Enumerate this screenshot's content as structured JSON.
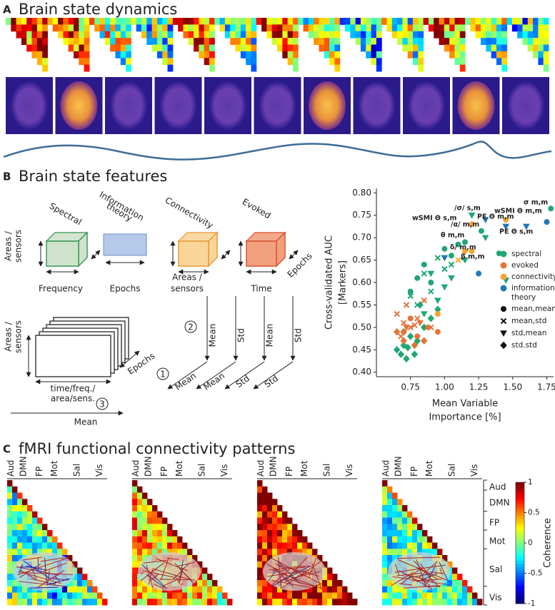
{
  "panel_a": {
    "label": "A",
    "title": "Brain state dynamics"
  },
  "panel_b": {
    "label": "B",
    "title": "Brain state features",
    "cubes": [
      {
        "name": "Spectral",
        "axes": [
          [
            "Areas /",
            "sensors"
          ],
          "Frequency"
        ]
      },
      {
        "name": [
          "Information",
          "theory"
        ],
        "axes": [
          "Epochs"
        ]
      },
      {
        "name": "Connectivity",
        "axes": [
          [
            "Areas /",
            "sensors"
          ]
        ]
      },
      {
        "name": "Evoked",
        "axes": [
          "Time",
          "Epochs"
        ]
      }
    ],
    "stack": {
      "y_axis": [
        "Areas /",
        "sensors"
      ],
      "x_axis": [
        "time/freq./",
        "area/sens."
      ],
      "depth": "Epochs",
      "step": "3",
      "step_label": "Mean"
    },
    "aggregation": {
      "steps": [
        "1",
        "2"
      ],
      "first": [
        "Mean",
        "Std",
        "Mean",
        "Std"
      ],
      "second": [
        "Mean",
        "Mean",
        "Std",
        "Std"
      ]
    }
  },
  "chart_data": {
    "type": "scatter",
    "x_label": [
      "Mean Variable",
      "Importance [%]"
    ],
    "y_label": [
      "Cross-validated AUC",
      "[Markers]"
    ],
    "xlim": [
      0.5,
      1.8
    ],
    "ylim": [
      0.39,
      0.81
    ],
    "xticks": [
      0.75,
      {
        "value": 1,
        "label": "1.00"
      },
      1.25,
      {
        "value": 1.5,
        "label": "1.50"
      },
      1.75
    ],
    "yticks": [
      {
        "value": 0.4,
        "label": "0.40"
      },
      0.45,
      {
        "value": 0.5,
        "label": "0.50"
      },
      0.55,
      {
        "value": 0.6,
        "label": "0.60"
      },
      0.65,
      {
        "value": 0.7,
        "label": "0.70"
      },
      0.75,
      {
        "value": 0.8,
        "label": "0.80"
      }
    ],
    "series": [
      {
        "name": "spectral",
        "color": "#1fa774",
        "x": [
          1.78,
          1.27,
          1.15,
          1.0,
          1.05,
          0.8,
          0.75,
          1.4,
          0.9,
          1.1,
          0.85,
          0.95,
          0.85,
          1.0,
          0.75,
          0.9,
          0.8,
          1.05,
          1.2,
          1.3,
          1.0,
          1.15,
          1.45,
          0.95,
          0.85,
          1.05,
          0.9,
          0.68,
          0.7,
          0.65,
          0.72,
          0.75,
          0.8,
          0.78,
          0.85,
          0.9,
          0.7,
          0.82,
          0.95,
          0.73
        ],
        "values": [
          0.765,
          0.715,
          0.69,
          0.675,
          0.66,
          0.61,
          0.58,
          0.665,
          0.6,
          0.685,
          0.64,
          0.655,
          0.62,
          0.63,
          0.57,
          0.58,
          0.55,
          0.64,
          0.75,
          0.7,
          0.59,
          0.65,
          0.605,
          0.56,
          0.53,
          0.61,
          0.62,
          0.44,
          0.46,
          0.45,
          0.43,
          0.48,
          0.47,
          0.44,
          0.5,
          0.52,
          0.49,
          0.55,
          0.54,
          0.455
        ],
        "markers": [
          "circle",
          "circle",
          "circle",
          "circle",
          "circle",
          "circle",
          "circle",
          "circle",
          "circle",
          "circle",
          "circle",
          "x",
          "x",
          "x",
          "x",
          "x",
          "x",
          "x",
          "triangle",
          "triangle",
          "triangle",
          "triangle",
          "triangle",
          "triangle",
          "triangle",
          "triangle",
          "triangle",
          "diamond",
          "diamond",
          "diamond",
          "diamond",
          "diamond",
          "diamond",
          "diamond",
          "diamond",
          "diamond",
          "diamond",
          "diamond",
          "diamond",
          "diamond"
        ]
      },
      {
        "name": "evoked",
        "color": "#e5733a",
        "x": [
          0.65,
          0.7,
          0.75,
          0.8,
          0.68,
          0.85,
          0.72,
          0.9,
          0.78,
          0.7,
          0.8,
          0.88,
          0.75,
          0.95,
          0.72,
          0.82,
          0.7,
          0.78,
          0.65,
          0.85
        ],
        "values": [
          0.53,
          0.51,
          0.5,
          0.52,
          0.48,
          0.56,
          0.55,
          0.5,
          0.505,
          0.49,
          0.48,
          0.5,
          0.52,
          0.49,
          0.5,
          0.51,
          0.47,
          0.46,
          0.49,
          0.47
        ],
        "markers": [
          "x",
          "x",
          "x",
          "x",
          "x",
          "x",
          "x",
          "x",
          "x",
          "circle",
          "circle",
          "circle",
          "circle",
          "circle",
          "triangle",
          "triangle",
          "diamond",
          "diamond",
          "diamond",
          "diamond"
        ]
      },
      {
        "name": "connectivity",
        "color": "#f5a531",
        "x": [
          1.45,
          1.2,
          1.2,
          0.95,
          1.15,
          1.1
        ],
        "values": [
          0.74,
          0.73,
          0.67,
          0.53,
          0.67,
          0.65
        ],
        "markers": [
          "circle",
          "circle",
          "circle",
          "circle",
          "diamond",
          "x"
        ]
      },
      {
        "name": "information theory",
        "color": "#2377b4",
        "x": [
          1.25,
          1.75,
          1.6,
          1.3,
          1.45,
          1.0
        ],
        "values": [
          0.62,
          0.735,
          0.725,
          0.74,
          0.725,
          0.655
        ],
        "markers": [
          "circle",
          "circle",
          "triangle",
          "triangle",
          "triangle",
          "triangle"
        ]
      }
    ],
    "marker_legend": [
      {
        "name": "mean,mean",
        "shape": "circle"
      },
      {
        "name": "mean,std",
        "shape": "x"
      },
      {
        "name": "std,mean",
        "shape": "triangle"
      },
      {
        "name": "std.std",
        "shape": "diamond"
      }
    ],
    "annotations": [
      {
        "text": "σ m,m"
      },
      {
        "text": "/σ/ s,m"
      },
      {
        "text": "wSMI Θ s,m"
      },
      {
        "text": "PE Θ m,m"
      },
      {
        "text": "wSMI Θ m,m"
      },
      {
        "text": "/α/ m,m"
      },
      {
        "text": "θ m,m"
      },
      {
        "text": "δ/ m,m"
      },
      {
        "text": "PE Θ s,m"
      },
      {
        "text": "β m,m"
      }
    ]
  },
  "panel_c": {
    "label": "C",
    "title": "fMRI functional connectivity patterns",
    "networks": [
      "Aud",
      "DMN",
      "FP",
      "Mot",
      "Sal",
      "Vis"
    ],
    "colorbar": {
      "lim": [
        -1,
        1
      ],
      "ticks": [
        1,
        0.5,
        0,
        -0.5,
        -1
      ],
      "label": "Coherence"
    }
  }
}
